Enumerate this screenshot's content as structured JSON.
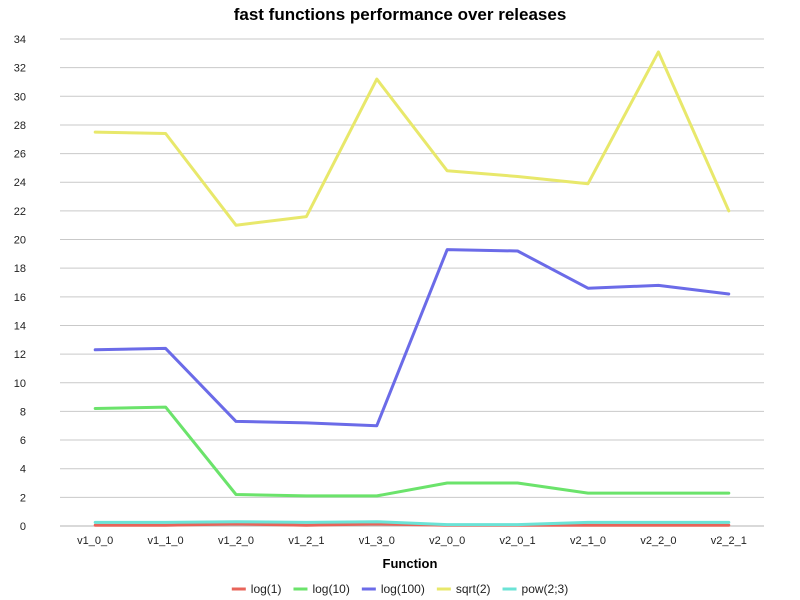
{
  "chart_data": {
    "type": "line",
    "title": "fast functions performance over releases",
    "xlabel": "Function",
    "ylabel": "",
    "ylim": [
      0,
      34
    ],
    "yticks": [
      0,
      2,
      4,
      6,
      8,
      10,
      12,
      14,
      16,
      18,
      20,
      22,
      24,
      26,
      28,
      30,
      32,
      34
    ],
    "grid": true,
    "legend_position": "bottom",
    "categories": [
      "v1_0_0",
      "v1_1_0",
      "v1_2_0",
      "v1_2_1",
      "v1_3_0",
      "v2_0_0",
      "v2_0_1",
      "v2_1_0",
      "v2_2_0",
      "v2_2_1"
    ],
    "series": [
      {
        "name": "log(1)",
        "color": "#e8645a",
        "values": [
          0.05,
          0.05,
          0.15,
          0.05,
          0.15,
          0.05,
          0.05,
          0.05,
          0.05,
          0.05
        ]
      },
      {
        "name": "log(10)",
        "color": "#6be36b",
        "values": [
          8.2,
          8.3,
          2.2,
          2.1,
          2.1,
          3.0,
          3.0,
          2.3,
          2.3,
          2.3
        ]
      },
      {
        "name": "log(100)",
        "color": "#6b6be8",
        "values": [
          12.3,
          12.4,
          7.3,
          7.2,
          7.0,
          19.3,
          19.2,
          16.6,
          16.8,
          16.2
        ]
      },
      {
        "name": "sqrt(2)",
        "color": "#e8e86b",
        "values": [
          27.5,
          27.4,
          21.0,
          21.6,
          31.2,
          24.8,
          24.4,
          23.9,
          33.1,
          22.0
        ]
      },
      {
        "name": "pow(2;3)",
        "color": "#6be3d6",
        "values": [
          0.25,
          0.25,
          0.3,
          0.25,
          0.3,
          0.1,
          0.1,
          0.25,
          0.25,
          0.25
        ]
      }
    ]
  }
}
